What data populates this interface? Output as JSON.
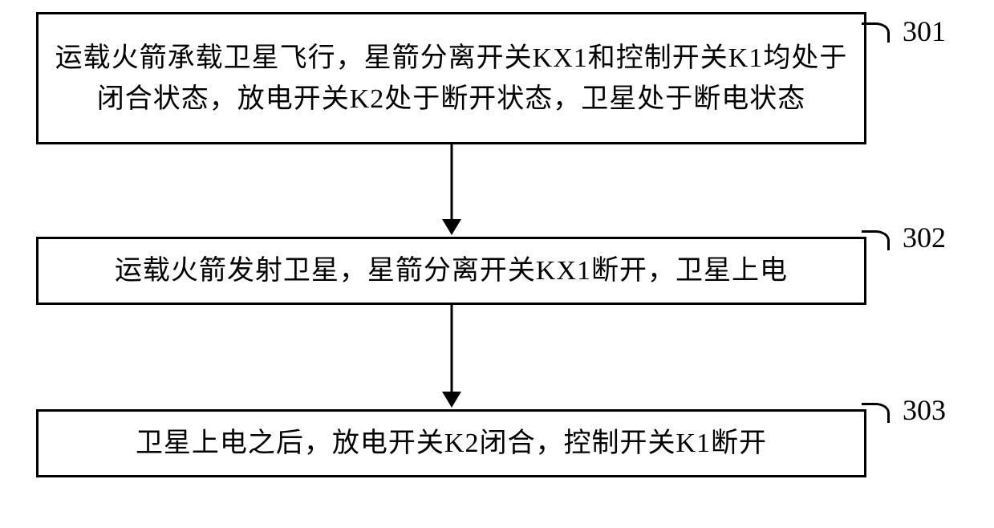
{
  "flowchart": {
    "type": "flowchart",
    "background_color": "#ffffff",
    "border_color": "#000000",
    "border_width": 3,
    "text_color": "#000000",
    "font_size": 34,
    "label_font_size": 36,
    "font_family": "SimSun",
    "steps": [
      {
        "id": "301",
        "text": "运载火箭承载卫星飞行，星箭分离开关KX1和控制开关K1均处于闭合状态，放电开关K2处于断开状态，卫星处于断电状态",
        "label": "301"
      },
      {
        "id": "302",
        "text": "运载火箭发射卫星，星箭分离开关KX1断开，卫星上电",
        "label": "302"
      },
      {
        "id": "303",
        "text": "卫星上电之后，放电开关K2闭合，控制开关K1断开",
        "label": "303"
      }
    ],
    "arrows": [
      {
        "from": "301",
        "to": "302"
      },
      {
        "from": "302",
        "to": "303"
      }
    ]
  }
}
